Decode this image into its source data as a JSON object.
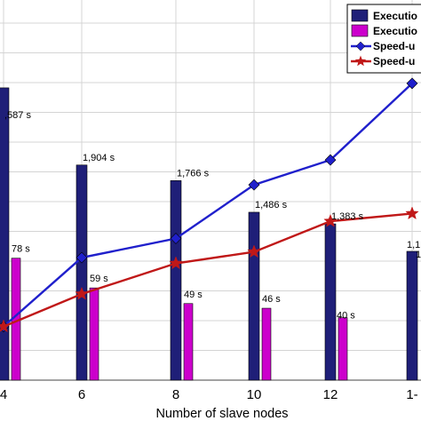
{
  "chart_data": {
    "type": "bar",
    "xlabel": "Number of slave nodes",
    "x_ticks": [
      "4",
      "6",
      "8",
      "10",
      "12",
      "1-"
    ],
    "grid": true,
    "legend_position": "top-right",
    "series": [
      {
        "name": "Executio",
        "kind": "bar",
        "color": "#1f1f78",
        "values": [
          2587,
          1904,
          1766,
          1486,
          1383,
          1140
        ],
        "labels": [
          ",587 s",
          "1,904 s",
          "1,766 s",
          "1,486 s",
          "1,383 s",
          "1,1"
        ]
      },
      {
        "name": "Executio",
        "kind": "bar",
        "color": "#cc00cc",
        "values": [
          78,
          59,
          49,
          46,
          40,
          null
        ],
        "labels": [
          "78 s",
          "59 s",
          "49 s",
          "46 s",
          "40 s",
          ""
        ]
      },
      {
        "name": "Speed-u",
        "kind": "line",
        "marker": "diamond",
        "color": "#2020cc",
        "values": [
          1.0,
          1.36,
          1.46,
          1.74,
          1.87,
          2.27
        ]
      },
      {
        "name": "Speed-u",
        "kind": "line",
        "marker": "star",
        "color": "#c01818",
        "values": [
          1.0,
          1.17,
          1.33,
          1.39,
          1.55,
          1.59
        ]
      }
    ],
    "extra_labels": [
      "1"
    ]
  }
}
